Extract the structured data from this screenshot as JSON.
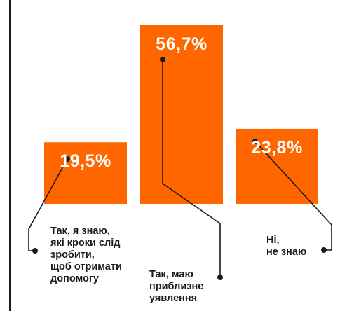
{
  "chart_data": {
    "type": "bar",
    "title": "",
    "xlabel": "",
    "ylabel": "",
    "ylim": [
      0,
      60
    ],
    "grid": false,
    "legend": "none",
    "bar_color": "#ff6600",
    "axis_color": "#1a1a1a",
    "categories": [
      "Так, я знаю,\nякі кроки слід\nзробити,\nщоб отримати\nдопомогу",
      "Так, маю\nприблизне\nуявлення",
      "Ні,\nне знаю"
    ],
    "values": [
      19.5,
      56.7,
      23.8
    ],
    "value_labels": [
      "19,5%",
      "56,7%",
      "23,8%"
    ]
  }
}
